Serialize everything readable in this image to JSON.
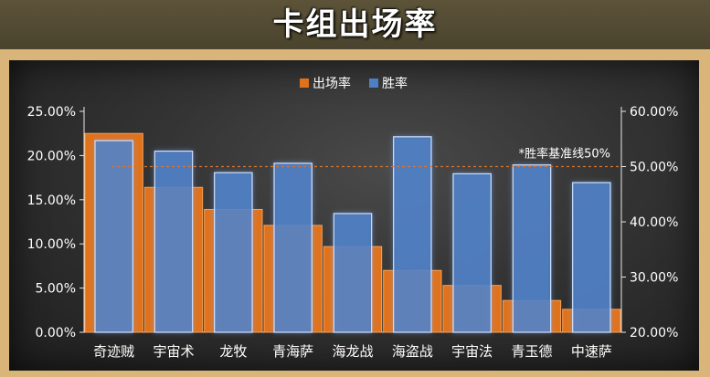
{
  "header": {
    "title": "卡组出场率"
  },
  "chart_data": {
    "type": "bar",
    "title": "卡组出场率",
    "categories": [
      "奇迹贼",
      "宇宙术",
      "龙牧",
      "青海萨",
      "海龙战",
      "海盗战",
      "宇宙法",
      "青玉德",
      "中速萨"
    ],
    "series": [
      {
        "name": "出场率",
        "axis": "left",
        "values": [
          22.5,
          16.4,
          13.9,
          12.1,
          9.7,
          7.0,
          5.3,
          3.6,
          2.6
        ]
      },
      {
        "name": "胜率",
        "axis": "right",
        "values": [
          54.7,
          52.8,
          48.9,
          50.6,
          41.5,
          55.4,
          48.7,
          50.3,
          47.1
        ]
      }
    ],
    "y_left": {
      "ticks": [
        "0.00%",
        "5.00%",
        "10.00%",
        "15.00%",
        "20.00%",
        "25.00%"
      ],
      "range": [
        0,
        25
      ]
    },
    "y_right": {
      "ticks": [
        "20.00%",
        "30.00%",
        "40.00%",
        "50.00%",
        "60.00%"
      ],
      "range": [
        20,
        60
      ]
    },
    "reference_line": {
      "axis": "right",
      "value": 50,
      "label": "*胜率基准线50%"
    },
    "legend_position": "top-center",
    "colors": {
      "rate": "#e0721c",
      "win": "#4d7fc4",
      "axis_text": "#ffffff",
      "reference": "#d9752b"
    }
  }
}
